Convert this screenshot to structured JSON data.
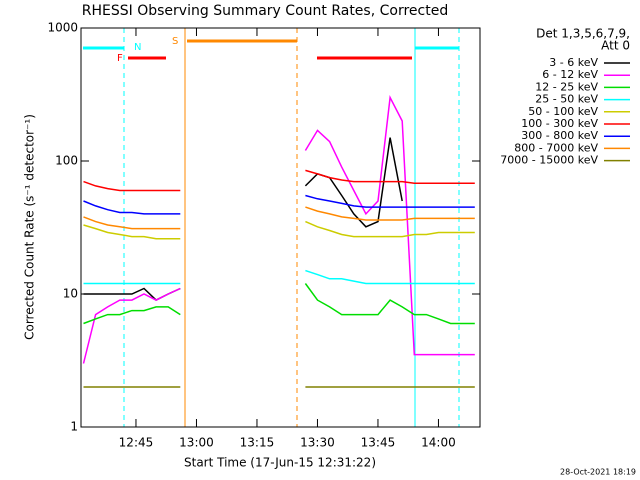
{
  "chart_data": {
    "type": "line",
    "title": "RHESSI Observing Summary Count Rates, Corrected",
    "x_label": "Start Time (17-Jun-15 12:31:22)",
    "y_label": "Corrected Count Rate (s⁻¹ detector⁻¹)",
    "legend_title": [
      "Det 1,3,5,6,7,9,",
      "Att 0"
    ],
    "footer": "28-Oct-2021 18:19",
    "annotations": [
      "N",
      "F",
      "S"
    ],
    "log_y": true,
    "xlim": [
      751.37,
      850.3
    ],
    "xticks": [
      {
        "value": 765,
        "label": "12:45"
      },
      {
        "value": 780,
        "label": "13:00"
      },
      {
        "value": 795,
        "label": "13:15"
      },
      {
        "value": 810,
        "label": "13:30"
      },
      {
        "value": 825,
        "label": "13:45"
      },
      {
        "value": 840,
        "label": "14:00"
      }
    ],
    "ylim": [
      1,
      1000
    ],
    "yticks": [
      1,
      10,
      100,
      1000
    ],
    "x": [
      752,
      755,
      758,
      761,
      764,
      767,
      770,
      773,
      776,
      790,
      807,
      810,
      813,
      816,
      819,
      822,
      825,
      828,
      831,
      834,
      837,
      840,
      843,
      846,
      849
    ],
    "series": [
      {
        "name": "3 - 6 keV",
        "color": "#000000",
        "values": [
          10,
          10,
          10,
          10,
          10,
          11,
          9,
          10,
          11,
          null,
          65,
          80,
          75,
          55,
          40,
          32,
          35,
          150,
          50,
          null,
          null,
          null,
          null,
          null,
          null
        ]
      },
      {
        "name": "6 - 12 keV",
        "color": "#ff00ff",
        "values": [
          3,
          7,
          8,
          9,
          9,
          10,
          9,
          10,
          11,
          null,
          120,
          170,
          140,
          90,
          60,
          40,
          50,
          300,
          200,
          3.5,
          3.5,
          3.5,
          3.5,
          3.5,
          3.5
        ]
      },
      {
        "name": "12 - 25 keV",
        "color": "#00dd00",
        "values": [
          6,
          6.5,
          7,
          7,
          7.5,
          7.5,
          8,
          8,
          7,
          null,
          12,
          9,
          8,
          7,
          7,
          7,
          7,
          9,
          8,
          7,
          7,
          6.5,
          6,
          6,
          6
        ]
      },
      {
        "name": "25 - 50 keV",
        "color": "#00ffff",
        "values": [
          12,
          12,
          12,
          12,
          12,
          12,
          12,
          12,
          12,
          null,
          15,
          14,
          13,
          13,
          12.5,
          12,
          12,
          12,
          12,
          12,
          12,
          12,
          12,
          12,
          12
        ]
      },
      {
        "name": "50 - 100 keV",
        "color": "#cccc00",
        "values": [
          33,
          31,
          29,
          28,
          27,
          27,
          26,
          26,
          26,
          null,
          35,
          32,
          30,
          28,
          27,
          27,
          27,
          27,
          27,
          28,
          28,
          29,
          29,
          29,
          29
        ]
      },
      {
        "name": "100 - 300 keV",
        "color": "#ff0000",
        "values": [
          70,
          65,
          62,
          60,
          60,
          60,
          60,
          60,
          60,
          null,
          85,
          80,
          75,
          72,
          70,
          70,
          70,
          70,
          70,
          68,
          68,
          68,
          68,
          68,
          68
        ]
      },
      {
        "name": "300 - 800 keV",
        "color": "#0000ff",
        "values": [
          50,
          46,
          43,
          41,
          41,
          40,
          40,
          40,
          40,
          null,
          55,
          52,
          50,
          48,
          46,
          45,
          45,
          45,
          45,
          45,
          45,
          45,
          45,
          45,
          45
        ]
      },
      {
        "name": "800 - 7000 keV",
        "color": "#ff8800",
        "values": [
          38,
          35,
          33,
          32,
          31,
          31,
          31,
          31,
          31,
          null,
          45,
          42,
          40,
          38,
          37,
          36,
          36,
          36,
          36,
          37,
          37,
          37,
          37,
          37,
          37
        ]
      },
      {
        "name": "7000 - 15000 keV",
        "color": "#808000",
        "values": [
          2,
          2,
          2,
          2,
          2,
          2,
          2,
          2,
          2,
          null,
          2,
          2,
          2,
          2,
          2,
          2,
          2,
          2,
          2,
          2,
          2,
          2,
          2,
          2,
          2
        ]
      }
    ]
  }
}
